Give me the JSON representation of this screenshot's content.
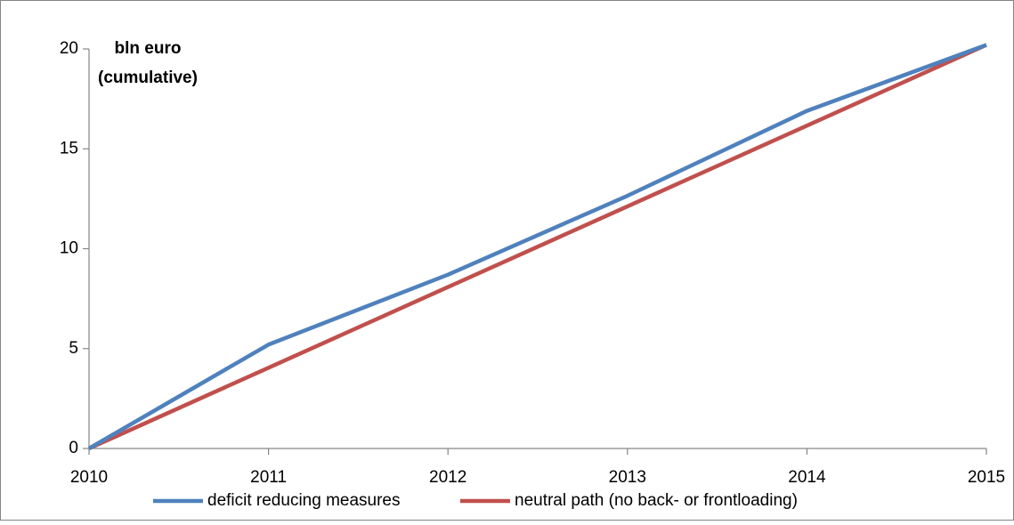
{
  "chart_data": {
    "type": "line",
    "y_label": [
      "bln euro",
      "(cumulative)"
    ],
    "x": [
      2010,
      2011,
      2012,
      2013,
      2014,
      2015
    ],
    "xlim": [
      2010,
      2015
    ],
    "xticks": [
      2010,
      2011,
      2012,
      2013,
      2014,
      2015
    ],
    "ylim": [
      0,
      20
    ],
    "yticks": [
      0,
      5,
      10,
      15,
      20
    ],
    "grid": false,
    "legend": "bottom",
    "series": [
      {
        "name": "deficit reducing measures",
        "color": "#4f81bd",
        "values": [
          0,
          5.2,
          8.7,
          12.65,
          16.9,
          20.2
        ]
      },
      {
        "name": "neutral path (no back- or frontloading)",
        "color": "#c0504d",
        "values": [
          0,
          4.04,
          8.08,
          12.12,
          16.16,
          20.2
        ]
      }
    ]
  }
}
